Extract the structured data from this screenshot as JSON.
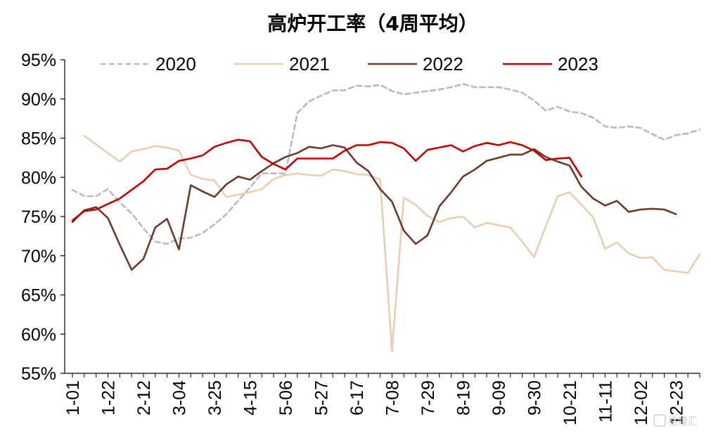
{
  "chart_data": {
    "type": "line",
    "title": "高炉开工率（4周平均）",
    "xlabel": "",
    "ylabel": "",
    "ylim": [
      55,
      95
    ],
    "yticks": [
      "95%",
      "90%",
      "85%",
      "80%",
      "75%",
      "70%",
      "65%",
      "60%",
      "55%"
    ],
    "xtick_labels": [
      "1-01",
      "1-22",
      "2-12",
      "3-04",
      "3-25",
      "4-15",
      "5-06",
      "5-27",
      "6-17",
      "7-08",
      "7-29",
      "8-19",
      "9-09",
      "9-30",
      "10-21",
      "11-11",
      "12-02",
      "12-23"
    ],
    "grid": false,
    "legend_position": "top",
    "series": [
      {
        "name": "2020",
        "color": "#b8b8c8",
        "dash": "dashed",
        "values": [
          78.4,
          77.6,
          77.6,
          78.5,
          76.8,
          75.4,
          73.5,
          71.8,
          71.5,
          72.2,
          72.3,
          72.9,
          74.0,
          75.3,
          77.0,
          78.7,
          80.5,
          80.5,
          80.5,
          88.2,
          89.7,
          90.4,
          91.1,
          91.1,
          91.7,
          91.6,
          91.8,
          91.0,
          90.6,
          90.8,
          91.0,
          91.2,
          91.5,
          91.9,
          91.5,
          91.5,
          91.5,
          91.2,
          90.8,
          89.8,
          88.5,
          89.0,
          88.4,
          88.2,
          87.6,
          86.5,
          86.3,
          86.5,
          86.3,
          85.5,
          84.8,
          85.4,
          85.6,
          86.1
        ]
      },
      {
        "name": "2021",
        "color": "#e8cfb2",
        "dash": "solid",
        "values": [
          null,
          85.3,
          84.2,
          83.1,
          82.0,
          83.3,
          83.6,
          84.0,
          83.8,
          83.4,
          80.3,
          79.8,
          79.6,
          77.5,
          77.8,
          78.1,
          78.5,
          79.8,
          80.3,
          80.5,
          80.3,
          80.2,
          81.0,
          80.8,
          80.4,
          80.3,
          79.7,
          57.8,
          77.4,
          76.5,
          75.1,
          74.3,
          74.8,
          75.0,
          73.6,
          74.2,
          73.9,
          73.6,
          71.8,
          69.8,
          73.8,
          77.6,
          78.1,
          76.5,
          74.9,
          70.9,
          71.7,
          70.3,
          69.7,
          69.8,
          68.2,
          68.0,
          67.8,
          70.2
        ]
      },
      {
        "name": "2022",
        "color": "#6b3a2a",
        "dash": "solid",
        "values": [
          74.3,
          75.8,
          76.2,
          74.8,
          71.4,
          68.2,
          69.6,
          73.6,
          74.7,
          70.8,
          79.0,
          78.2,
          77.5,
          79.1,
          80.1,
          79.7,
          80.8,
          81.8,
          82.6,
          83.1,
          83.9,
          83.7,
          84.1,
          83.8,
          81.9,
          80.8,
          78.5,
          76.9,
          73.2,
          71.5,
          72.6,
          76.3,
          78.1,
          80.1,
          81.0,
          82.1,
          82.5,
          82.9,
          82.9,
          83.6,
          82.6,
          82.0,
          81.5,
          78.8,
          77.3,
          76.4,
          77.0,
          75.6,
          75.9,
          76.0,
          75.9,
          75.3
        ]
      },
      {
        "name": "2023",
        "color": "#c00000",
        "dash": "solid",
        "values": [
          74.5,
          75.7,
          75.9,
          76.6,
          77.3,
          78.4,
          79.5,
          81.0,
          81.1,
          82.1,
          82.4,
          82.8,
          83.9,
          84.4,
          84.8,
          84.6,
          82.6,
          81.7,
          81.0,
          82.4,
          82.4,
          82.4,
          82.4,
          83.4,
          84.1,
          84.1,
          84.5,
          84.4,
          83.7,
          82.1,
          83.5,
          83.8,
          84.1,
          83.3,
          84.0,
          84.4,
          84.1,
          84.5,
          84.1,
          83.4,
          82.2,
          82.4,
          82.5,
          80.1
        ]
      }
    ]
  },
  "watermark_text": "格隆汇"
}
